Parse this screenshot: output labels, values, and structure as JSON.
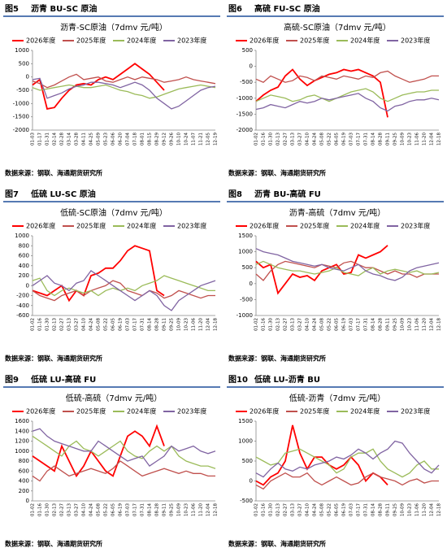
{
  "chart_data": [
    {
      "type": "line",
      "figure_label": "图5",
      "caption": "沥青 BU-SC 原油",
      "title": "沥青-SC原油（7dmv 元/吨）",
      "source": "数据来源：钢联、海通期货研究所",
      "categories": [
        "01-03",
        "01-17",
        "01-31",
        "02-14",
        "02-28",
        "03-14",
        "03-28",
        "04-11",
        "04-25",
        "05-09",
        "05-23",
        "06-06",
        "06-20",
        "07-04",
        "07-18",
        "08-01",
        "08-15",
        "08-29",
        "09-12",
        "09-26",
        "10-10",
        "10-24",
        "11-07",
        "11-21",
        "12-05",
        "12-19"
      ],
      "ylim": [
        -2000,
        1000
      ],
      "yticks": [
        -2000,
        -1500,
        -1000,
        -500,
        0,
        500,
        1000
      ],
      "series": [
        {
          "name": "2026年度",
          "color": "#ff0000",
          "values": [
            -300,
            -100,
            -1200,
            -1150,
            -800,
            -500,
            -300,
            -250,
            -300,
            -100,
            0,
            -100,
            100,
            300,
            500,
            300,
            100,
            -200,
            -500,
            null,
            null,
            null,
            null,
            null,
            null,
            null
          ]
        },
        {
          "name": "2025年度",
          "color": "#c0504d",
          "values": [
            -150,
            -250,
            -400,
            -300,
            -150,
            0,
            100,
            -100,
            -50,
            0,
            -150,
            -200,
            -100,
            0,
            -100,
            0,
            -50,
            -100,
            -200,
            -150,
            -100,
            0,
            -100,
            -150,
            -200,
            -250
          ]
        },
        {
          "name": "2024年度",
          "color": "#9bbb59",
          "values": [
            -400,
            -500,
            -450,
            -400,
            -350,
            -300,
            -350,
            -400,
            -400,
            -350,
            -300,
            -400,
            -500,
            -550,
            -650,
            -700,
            -800,
            -750,
            -650,
            -550,
            -450,
            -400,
            -350,
            -300,
            -350,
            -400
          ]
        },
        {
          "name": "2023年度",
          "color": "#8064a2",
          "values": [
            -100,
            -50,
            -800,
            -700,
            -600,
            -450,
            -350,
            -300,
            -200,
            -200,
            -250,
            -300,
            -400,
            -300,
            -200,
            -300,
            -500,
            -800,
            -1000,
            -1200,
            -1100,
            -900,
            -700,
            -500,
            -400,
            -350
          ]
        }
      ]
    },
    {
      "type": "line",
      "figure_label": "图6",
      "caption": "高硫 FU-SC 原油",
      "title": "高硫-SC原油（7dmv 元/吨）",
      "source": "数据来源：钢联、海通期货研究所",
      "categories": [
        "01-02",
        "01-16",
        "01-30",
        "02-13",
        "02-27",
        "03-13",
        "03-27",
        "04-10",
        "04-24",
        "05-08",
        "05-22",
        "06-05",
        "06-19",
        "07-03",
        "07-17",
        "07-31",
        "08-14",
        "08-28",
        "09-11",
        "09-25",
        "10-09",
        "10-23",
        "11-06",
        "11-20",
        "12-04",
        "12-18"
      ],
      "ylim": [
        -2000,
        500
      ],
      "yticks": [
        -2000,
        -1500,
        -1000,
        -500,
        0,
        500
      ],
      "series": [
        {
          "name": "2026年度",
          "color": "#ff0000",
          "values": [
            -1100,
            -900,
            -750,
            -650,
            -300,
            -100,
            -400,
            -600,
            -450,
            -350,
            -250,
            -200,
            -100,
            -150,
            -100,
            -200,
            -300,
            -500,
            -1600,
            null,
            null,
            null,
            null,
            null,
            null,
            null
          ]
        },
        {
          "name": "2025年度",
          "color": "#c0504d",
          "values": [
            -400,
            -500,
            -300,
            -400,
            -500,
            -450,
            -300,
            -350,
            -450,
            -300,
            -350,
            -400,
            -300,
            -350,
            -400,
            -300,
            -350,
            -200,
            -150,
            -300,
            -400,
            -500,
            -450,
            -400,
            -300,
            -300
          ]
        },
        {
          "name": "2024年度",
          "color": "#9bbb59",
          "values": [
            -1100,
            -1000,
            -900,
            -950,
            -1000,
            -1100,
            -1050,
            -950,
            -900,
            -1000,
            -1100,
            -1000,
            -900,
            -800,
            -750,
            -700,
            -800,
            -1000,
            -1100,
            -1000,
            -900,
            -850,
            -800,
            -800,
            -750,
            -750
          ]
        },
        {
          "name": "2023年度",
          "color": "#8064a2",
          "values": [
            -1350,
            -1300,
            -1200,
            -1250,
            -1300,
            -1200,
            -1100,
            -1150,
            -1100,
            -1000,
            -1050,
            -1000,
            -950,
            -900,
            -850,
            -1000,
            -1100,
            -1300,
            -1400,
            -1250,
            -1200,
            -1100,
            -1050,
            -1050,
            -1000,
            -1050
          ]
        }
      ]
    },
    {
      "type": "line",
      "figure_label": "图7",
      "caption": "低硫 LU-SC 原油",
      "title": "低硫-SC原油（7dmv 元/吨）",
      "source": "数据来源：钢联、海通期货研究所",
      "categories": [
        "01-02",
        "01-16",
        "01-30",
        "02-13",
        "02-27",
        "03-13",
        "03-27",
        "04-10",
        "04-24",
        "05-08",
        "05-22",
        "06-05",
        "06-19",
        "07-03",
        "07-17",
        "07-31",
        "08-14",
        "08-28",
        "09-11",
        "09-25",
        "10-09",
        "10-23",
        "11-06",
        "11-20",
        "12-04",
        "12-18"
      ],
      "ylim": [
        -600,
        1000
      ],
      "yticks": [
        -600,
        -400,
        -200,
        0,
        200,
        400,
        600,
        800,
        1000
      ],
      "series": [
        {
          "name": "2026年度",
          "color": "#ff0000",
          "values": [
            -100,
            -150,
            -200,
            -100,
            0,
            -300,
            -100,
            -200,
            200,
            250,
            350,
            350,
            500,
            700,
            800,
            750,
            700,
            -100,
            -200,
            null,
            null,
            null,
            null,
            null,
            null,
            null
          ]
        },
        {
          "name": "2025年度",
          "color": "#c0504d",
          "values": [
            -100,
            -200,
            -250,
            -300,
            -200,
            -150,
            -100,
            -200,
            -100,
            -50,
            0,
            100,
            50,
            -100,
            -150,
            -200,
            -100,
            -150,
            -250,
            -200,
            -100,
            -150,
            -200,
            -250,
            -200,
            -200
          ]
        },
        {
          "name": "2024年度",
          "color": "#9bbb59",
          "values": [
            100,
            150,
            -100,
            -200,
            -100,
            -50,
            -100,
            -150,
            -100,
            -200,
            -100,
            -50,
            -100,
            -50,
            -100,
            0,
            50,
            100,
            200,
            150,
            100,
            50,
            0,
            -50,
            -100,
            -100
          ]
        },
        {
          "name": "2023年度",
          "color": "#8064a2",
          "values": [
            0,
            100,
            200,
            50,
            0,
            -100,
            50,
            100,
            300,
            200,
            100,
            0,
            -100,
            -200,
            -300,
            -200,
            -100,
            -200,
            -400,
            -500,
            -300,
            -200,
            -100,
            0,
            50,
            100
          ]
        }
      ]
    },
    {
      "type": "line",
      "figure_label": "图8",
      "caption": "沥青 BU-高硫 FU",
      "title": "沥青-高硫（7dmv 元/吨）",
      "source": "数据来源：钢联、海通期货研究所",
      "categories": [
        "01-02",
        "01-16",
        "01-30",
        "02-13",
        "02-27",
        "03-13",
        "03-27",
        "04-10",
        "04-24",
        "05-08",
        "05-22",
        "06-05",
        "06-19",
        "07-03",
        "07-17",
        "07-31",
        "08-14",
        "08-28",
        "09-11",
        "09-25",
        "10-09",
        "10-23",
        "11-06",
        "11-20",
        "12-04",
        "12-18"
      ],
      "ylim": [
        -1000,
        1500
      ],
      "yticks": [
        -1000,
        -500,
        0,
        500,
        1000,
        1500
      ],
      "series": [
        {
          "name": "2026年度",
          "color": "#ff0000",
          "values": [
            700,
            500,
            600,
            -300,
            0,
            300,
            200,
            250,
            100,
            400,
            500,
            600,
            300,
            350,
            900,
            800,
            900,
            1000,
            1200,
            null,
            null,
            null,
            null,
            null,
            null,
            null
          ]
        },
        {
          "name": "2025年度",
          "color": "#c0504d",
          "values": [
            300,
            100,
            400,
            600,
            700,
            650,
            600,
            550,
            500,
            600,
            550,
            500,
            650,
            700,
            600,
            500,
            500,
            400,
            300,
            400,
            300,
            300,
            200,
            300,
            300,
            300
          ]
        },
        {
          "name": "2024年度",
          "color": "#9bbb59",
          "values": [
            600,
            700,
            600,
            500,
            450,
            400,
            400,
            350,
            300,
            350,
            400,
            500,
            350,
            300,
            250,
            400,
            500,
            300,
            400,
            450,
            400,
            350,
            400,
            300,
            300,
            350
          ]
        },
        {
          "name": "2023年度",
          "color": "#8064a2",
          "values": [
            1100,
            1000,
            950,
            900,
            800,
            700,
            650,
            600,
            550,
            600,
            500,
            450,
            400,
            500,
            600,
            400,
            300,
            250,
            150,
            100,
            200,
            400,
            500,
            550,
            600,
            650
          ]
        }
      ]
    },
    {
      "type": "line",
      "figure_label": "图9",
      "caption": "低硫 LU-高硫 FU",
      "title": "低硫-高硫（7dmv 元/吨）",
      "source": "数据来源：钢联、海通期货研究所",
      "categories": [
        "01-02",
        "01-16",
        "01-30",
        "02-13",
        "02-27",
        "03-13",
        "03-27",
        "04-10",
        "04-24",
        "05-08",
        "05-22",
        "06-05",
        "06-19",
        "07-03",
        "07-17",
        "07-31",
        "08-14",
        "08-28",
        "09-11",
        "09-25",
        "10-09",
        "10-23",
        "11-06",
        "11-20",
        "12-04",
        "12-18"
      ],
      "ylim": [
        0,
        1600
      ],
      "yticks": [
        0,
        200,
        400,
        600,
        800,
        1000,
        1200,
        1400,
        1600
      ],
      "series": [
        {
          "name": "2026年度",
          "color": "#ff0000",
          "values": [
            900,
            800,
            700,
            600,
            1100,
            800,
            500,
            700,
            1000,
            800,
            600,
            500,
            900,
            1300,
            1400,
            1300,
            1100,
            1500,
            1100,
            null,
            null,
            null,
            null,
            null,
            null,
            null
          ]
        },
        {
          "name": "2025年度",
          "color": "#c0504d",
          "values": [
            500,
            400,
            600,
            700,
            600,
            500,
            550,
            600,
            650,
            600,
            550,
            650,
            800,
            700,
            600,
            500,
            550,
            600,
            650,
            600,
            550,
            600,
            550,
            550,
            500,
            500
          ]
        },
        {
          "name": "2024年度",
          "color": "#9bbb59",
          "values": [
            1300,
            1200,
            1100,
            1000,
            900,
            1100,
            1200,
            1050,
            1000,
            900,
            1000,
            1100,
            1200,
            1000,
            900,
            850,
            1000,
            1100,
            1000,
            1100,
            900,
            800,
            750,
            700,
            700,
            650
          ]
        },
        {
          "name": "2023年度",
          "color": "#8064a2",
          "values": [
            1400,
            1450,
            1300,
            1200,
            1150,
            1100,
            1050,
            1000,
            1000,
            1200,
            1100,
            1000,
            900,
            800,
            850,
            900,
            700,
            800,
            900,
            1100,
            1000,
            1050,
            1100,
            1000,
            950,
            1000
          ]
        }
      ]
    },
    {
      "type": "line",
      "figure_label": "图10",
      "caption": "低硫 LU-沥青 BU",
      "title": "低硫-沥青（7dmv 元/吨）",
      "source": "数据来源：钢联、海通期货研究所",
      "categories": [
        "01-02",
        "01-16",
        "01-30",
        "02-13",
        "02-27",
        "03-13",
        "03-27",
        "04-10",
        "04-24",
        "05-08",
        "05-22",
        "06-05",
        "06-19",
        "07-03",
        "07-17",
        "07-31",
        "08-14",
        "08-28",
        "09-11",
        "09-25",
        "10-09",
        "10-23",
        "11-06",
        "11-20",
        "12-04",
        "12-18"
      ],
      "ylim": [
        -500,
        1500
      ],
      "yticks": [
        -500,
        0,
        500,
        1000,
        1500
      ],
      "series": [
        {
          "name": "2026年度",
          "color": "#ff0000",
          "values": [
            0,
            -100,
            100,
            200,
            500,
            1400,
            700,
            300,
            600,
            600,
            400,
            300,
            400,
            600,
            400,
            0,
            200,
            100,
            -100,
            null,
            null,
            null,
            null,
            null,
            null,
            null
          ]
        },
        {
          "name": "2025年度",
          "color": "#c0504d",
          "values": [
            -100,
            -200,
            0,
            100,
            200,
            100,
            100,
            200,
            0,
            -100,
            0,
            100,
            0,
            -100,
            -50,
            100,
            200,
            100,
            50,
            0,
            -100,
            0,
            50,
            -50,
            0,
            0
          ]
        },
        {
          "name": "2024年度",
          "color": "#9bbb59",
          "values": [
            600,
            500,
            400,
            450,
            700,
            750,
            800,
            700,
            600,
            500,
            400,
            200,
            300,
            600,
            700,
            700,
            800,
            500,
            300,
            200,
            100,
            200,
            400,
            500,
            300,
            300
          ]
        },
        {
          "name": "2023年度",
          "color": "#8064a2",
          "values": [
            200,
            100,
            300,
            450,
            300,
            250,
            350,
            300,
            400,
            450,
            500,
            600,
            550,
            650,
            800,
            700,
            550,
            700,
            800,
            1000,
            950,
            700,
            500,
            300,
            200,
            400
          ]
        }
      ]
    }
  ]
}
